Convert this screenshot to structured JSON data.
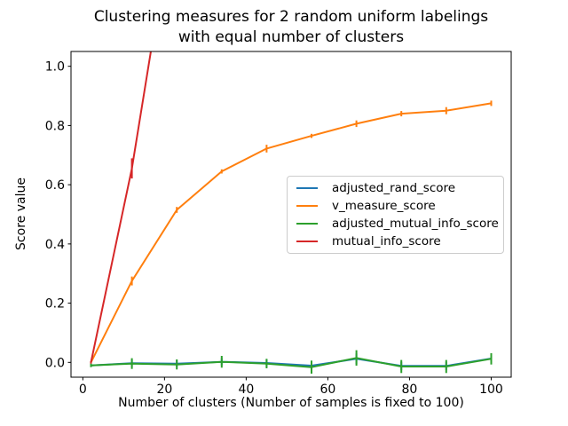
{
  "chart_data": {
    "type": "line",
    "title": "Clustering measures for 2 random uniform labelings\nwith equal number of clusters",
    "title_lines": [
      "Clustering measures for 2 random uniform labelings",
      "with equal number of clusters"
    ],
    "xlabel": "Number of clusters (Number of samples is fixed to 100)",
    "ylabel": "Score value",
    "x": [
      2,
      12,
      23,
      34,
      45,
      56,
      67,
      78,
      89,
      100
    ],
    "xlim": [
      -2.9,
      104.9
    ],
    "ylim": [
      -0.05,
      1.05
    ],
    "xticks": [
      "0",
      "20",
      "40",
      "60",
      "80",
      "100"
    ],
    "yticks": [
      "0.0",
      "0.2",
      "0.4",
      "0.6",
      "0.8",
      "1.0"
    ],
    "grid": false,
    "legend_position": "center-right-inside",
    "frame_color": "#000000",
    "background_color": "#ffffff",
    "series": [
      {
        "name": "adjusted_rand_score",
        "color": "#1f77b4",
        "values": [
          -0.01,
          -0.003,
          -0.004,
          0.002,
          -0.002,
          -0.011,
          0.012,
          -0.012,
          -0.012,
          0.013
        ],
        "errors": [
          0.005,
          0.012,
          0.012,
          0.012,
          0.012,
          0.014,
          0.018,
          0.014,
          0.014,
          0.014
        ]
      },
      {
        "name": "v_measure_score",
        "color": "#ff7f0e",
        "values": [
          0.0,
          0.275,
          0.515,
          0.645,
          0.722,
          0.765,
          0.806,
          0.84,
          0.85,
          0.875
        ],
        "errors": [
          0.004,
          0.015,
          0.01,
          0.007,
          0.013,
          0.007,
          0.011,
          0.009,
          0.012,
          0.009
        ]
      },
      {
        "name": "adjusted_mutual_info_score",
        "color": "#2ca02c",
        "values": [
          -0.01,
          -0.004,
          -0.007,
          0.002,
          -0.004,
          -0.016,
          0.015,
          -0.014,
          -0.014,
          0.012
        ],
        "errors": [
          0.006,
          0.018,
          0.017,
          0.02,
          0.016,
          0.022,
          0.026,
          0.022,
          0.022,
          0.019
        ]
      },
      {
        "name": "mutual_info_score",
        "color": "#d62728",
        "values": [
          0.0,
          0.655,
          1.59,
          null,
          null,
          null,
          null,
          null,
          null,
          null
        ],
        "errors": [
          0.004,
          0.034,
          0,
          0,
          0,
          0,
          0,
          0,
          0,
          0
        ]
      }
    ]
  }
}
